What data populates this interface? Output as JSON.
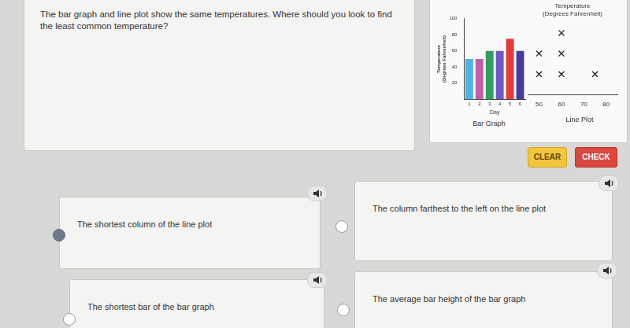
{
  "question": "The bar graph and line plot show the same temperatures. Where should you look to find the least common temperature?",
  "chart_data": [
    {
      "type": "bar",
      "caption": "Bar Graph",
      "ylabel": [
        "Temperature",
        "(Degrees Fahrenheit)"
      ],
      "xlabel": "Day",
      "categories": [
        "1",
        "2",
        "3",
        "4",
        "5",
        "6"
      ],
      "values": [
        50,
        50,
        60,
        60,
        75,
        60
      ],
      "colors": [
        "#4fb3e0",
        "#c25fa6",
        "#2f9e5b",
        "#6f58c9",
        "#e23b3b",
        "#4a3a9e"
      ],
      "ylim": [
        0,
        100
      ],
      "yticks": [
        20,
        40,
        60,
        80,
        100
      ],
      "grid": false
    },
    {
      "type": "dot_plot",
      "title": [
        "Temperature",
        "(Degrees Fahrenheit)"
      ],
      "caption": "Line Plot",
      "values": [
        50,
        50,
        60,
        60,
        60,
        75
      ],
      "marker": "x",
      "color": "#222222",
      "xlim": [
        45,
        85
      ],
      "xticks": [
        50,
        60,
        70,
        80
      ],
      "grid": false
    }
  ],
  "buttons": [
    "CLEAR",
    "CHECK"
  ],
  "options": [
    {
      "text": "The shortest column of the line plot",
      "selected": true
    },
    {
      "text": "The column farthest to the left on the line plot",
      "selected": false
    },
    {
      "text": "The shortest bar of the bar graph",
      "selected": false
    },
    {
      "text": "The average bar height of the bar graph",
      "selected": false
    }
  ]
}
